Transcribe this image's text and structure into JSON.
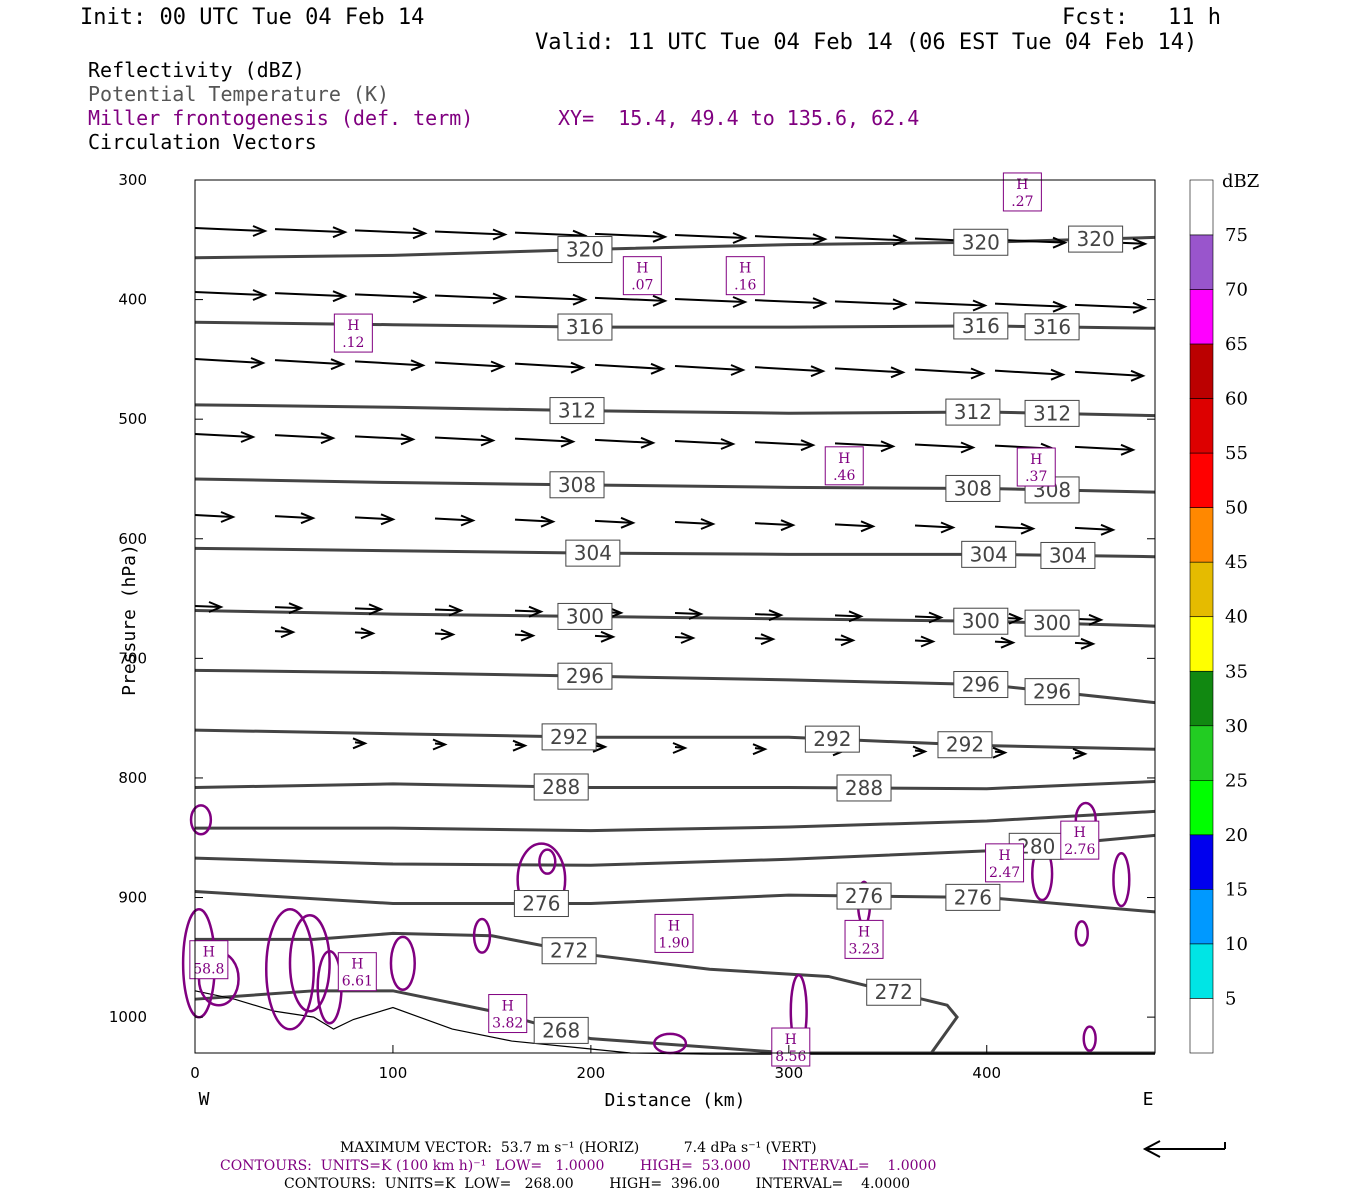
{
  "header": {
    "init": "Init: 00 UTC Tue 04 Feb 14",
    "fcst": "Fcst:   11 h",
    "valid": "Valid: 11 UTC Tue 04 Feb 14 (06 EST Tue 04 Feb 14)"
  },
  "legend": [
    "Reflectivity (dBZ)",
    "Potential Temperature (K)",
    "Miller frontogenesis (def. term)",
    "Circulation Vectors"
  ],
  "xy_text": "XY=  15.4, 49.4 to 135.6, 62.4",
  "footer": {
    "line1": "MAXIMUM VECTOR:  53.7 m s⁻¹ (HORIZ)          7.4 dPa s⁻¹ (VERT)",
    "line2": "CONTOURS:  UNITS=K (100 km h)⁻¹  LOW=   1.0000        HIGH=  53.000       INTERVAL=    1.0000",
    "line3": "CONTOURS:  UNITS=K  LOW=   268.00        HIGH=  396.00        INTERVAL=    4.0000"
  },
  "colors": {
    "theta": "#444444",
    "frontogenesis": "#800080",
    "vectors": "#000000"
  },
  "chart_data": {
    "type": "line",
    "xlabel": "Distance (km)",
    "ylabel": "Pressure (hPa)",
    "xlim": [
      0,
      485
    ],
    "ylim": [
      300,
      1030
    ],
    "x_ticks": [
      0,
      100,
      200,
      300,
      400
    ],
    "y_ticks": [
      300,
      400,
      500,
      600,
      700,
      800,
      900,
      1000
    ],
    "x_end_labels": {
      "left": "W",
      "right": "E"
    },
    "theta_isentropes": [
      {
        "value": 320,
        "x": [
          0,
          100,
          200,
          300,
          400,
          485
        ],
        "p": [
          365,
          363,
          358,
          354,
          352,
          348
        ],
        "labels": [
          {
            "x": 197,
            "text": "320"
          },
          {
            "x": 397,
            "text": "320"
          },
          {
            "x": 455,
            "text": "320"
          }
        ]
      },
      {
        "value": 316,
        "x": [
          0,
          100,
          200,
          300,
          400,
          485
        ],
        "p": [
          419,
          421,
          423,
          423,
          422,
          424
        ],
        "labels": [
          {
            "x": 197,
            "text": "316"
          },
          {
            "x": 397,
            "text": "316"
          },
          {
            "x": 433,
            "text": "316"
          }
        ]
      },
      {
        "value": 312,
        "x": [
          0,
          100,
          200,
          300,
          400,
          485
        ],
        "p": [
          488,
          490,
          493,
          495,
          494,
          497
        ],
        "labels": [
          {
            "x": 193,
            "text": "312"
          },
          {
            "x": 393,
            "text": "312"
          },
          {
            "x": 433,
            "text": "312"
          }
        ]
      },
      {
        "value": 308,
        "x": [
          0,
          100,
          200,
          300,
          400,
          485
        ],
        "p": [
          550,
          553,
          555,
          557,
          558,
          561
        ],
        "labels": [
          {
            "x": 193,
            "text": "308"
          },
          {
            "x": 393,
            "text": "308"
          },
          {
            "x": 433,
            "text": "308"
          }
        ]
      },
      {
        "value": 304,
        "x": [
          0,
          100,
          200,
          300,
          400,
          485
        ],
        "p": [
          608,
          610,
          612,
          613,
          613,
          615
        ],
        "labels": [
          {
            "x": 201,
            "text": "304"
          },
          {
            "x": 401,
            "text": "304"
          },
          {
            "x": 441,
            "text": "304"
          }
        ]
      },
      {
        "value": 300,
        "x": [
          0,
          100,
          200,
          300,
          400,
          485
        ],
        "p": [
          660,
          663,
          665,
          667,
          669,
          673
        ],
        "labels": [
          {
            "x": 197,
            "text": "300"
          },
          {
            "x": 397,
            "text": "300"
          },
          {
            "x": 433,
            "text": "300"
          }
        ]
      },
      {
        "value": 296,
        "x": [
          0,
          100,
          200,
          300,
          400,
          485
        ],
        "p": [
          710,
          712,
          715,
          718,
          722,
          737
        ],
        "labels": [
          {
            "x": 197,
            "text": "296"
          },
          {
            "x": 397,
            "text": "296"
          },
          {
            "x": 433,
            "text": "296"
          }
        ]
      },
      {
        "value": 292,
        "x": [
          0,
          100,
          200,
          300,
          400,
          485
        ],
        "p": [
          760,
          763,
          766,
          766,
          773,
          776
        ],
        "labels": [
          {
            "x": 189,
            "text": "292"
          },
          {
            "x": 322,
            "text": "292"
          },
          {
            "x": 389,
            "text": "292"
          }
        ]
      },
      {
        "value": 288,
        "x": [
          0,
          100,
          200,
          300,
          400,
          485
        ],
        "p": [
          808,
          805,
          808,
          808,
          809,
          803
        ],
        "labels": [
          {
            "x": 185,
            "text": "288"
          },
          {
            "x": 338,
            "text": "288"
          }
        ]
      },
      {
        "value": 284,
        "x": [
          0,
          100,
          200,
          300,
          400,
          485
        ],
        "p": [
          842,
          842,
          844,
          841,
          836,
          828
        ],
        "labels": []
      },
      {
        "value": 280,
        "x": [
          0,
          100,
          200,
          300,
          400,
          485
        ],
        "p": [
          867,
          872,
          873,
          868,
          861,
          848
        ],
        "labels": [
          {
            "x": 425,
            "text": "280"
          }
        ]
      },
      {
        "value": 276,
        "x": [
          0,
          100,
          200,
          300,
          400,
          485
        ],
        "p": [
          895,
          905,
          905,
          898,
          900,
          912
        ],
        "labels": [
          {
            "x": 175,
            "text": "276"
          },
          {
            "x": 338,
            "text": "276"
          },
          {
            "x": 393,
            "text": "276"
          }
        ]
      },
      {
        "value": 272,
        "x": [
          0,
          60,
          100,
          150,
          200,
          260,
          320,
          380,
          385,
          372
        ],
        "p": [
          935,
          935,
          930,
          932,
          948,
          960,
          966,
          990,
          1000,
          1030
        ],
        "labels": [
          {
            "x": 189,
            "text": "272"
          },
          {
            "x": 353,
            "text": "272"
          }
        ]
      },
      {
        "value": 268,
        "x": [
          0,
          60,
          100,
          150,
          200,
          300,
          485
        ],
        "p": [
          985,
          978,
          978,
          995,
          1018,
          1030,
          1030
        ],
        "labels": [
          {
            "x": 185,
            "text": "268"
          }
        ]
      }
    ],
    "surface_terrain": {
      "x": [
        0,
        20,
        40,
        60,
        70,
        80,
        100,
        130,
        160,
        190,
        220,
        260,
        300,
        400,
        485
      ],
      "p": [
        978,
        985,
        995,
        1000,
        1010,
        1002,
        992,
        1010,
        1020,
        1025,
        1030,
        1031,
        1031,
        1031,
        1031
      ]
    },
    "frontogenesis_maxima": [
      {
        "x": 7,
        "p": 952,
        "value": "58.8"
      },
      {
        "x": 82,
        "p": 962,
        "value": "6.61"
      },
      {
        "x": 158,
        "p": 997,
        "value": "3.82"
      },
      {
        "x": 226,
        "p": 380,
        "value": ".07"
      },
      {
        "x": 278,
        "p": 380,
        "value": ".16"
      },
      {
        "x": 80,
        "p": 428,
        "value": ".12"
      },
      {
        "x": 242,
        "p": 930,
        "value": "1.90"
      },
      {
        "x": 301,
        "p": 1025,
        "value": "8.56"
      },
      {
        "x": 338,
        "p": 935,
        "value": "3.23"
      },
      {
        "x": 328,
        "p": 539,
        "value": ".46"
      },
      {
        "x": 409,
        "p": 871,
        "value": "2.47"
      },
      {
        "x": 447,
        "p": 852,
        "value": "2.76"
      },
      {
        "x": 425,
        "p": 540,
        "value": ".37"
      },
      {
        "x": 418,
        "p": 310,
        "value": ".27"
      }
    ],
    "colorbar": {
      "unit": "dBZ",
      "levels": [
        5,
        10,
        15,
        20,
        25,
        30,
        35,
        40,
        45,
        50,
        55,
        60,
        65,
        70,
        75
      ],
      "colors": [
        "#ffffff",
        "#00e5e5",
        "#0099ff",
        "#0000ee",
        "#00ff00",
        "#22cc22",
        "#118811",
        "#ffff00",
        "#e5bb00",
        "#ff8800",
        "#ff0000",
        "#dd0000",
        "#bb0000",
        "#ff00ff",
        "#9955cc",
        "#ffffff"
      ]
    }
  }
}
